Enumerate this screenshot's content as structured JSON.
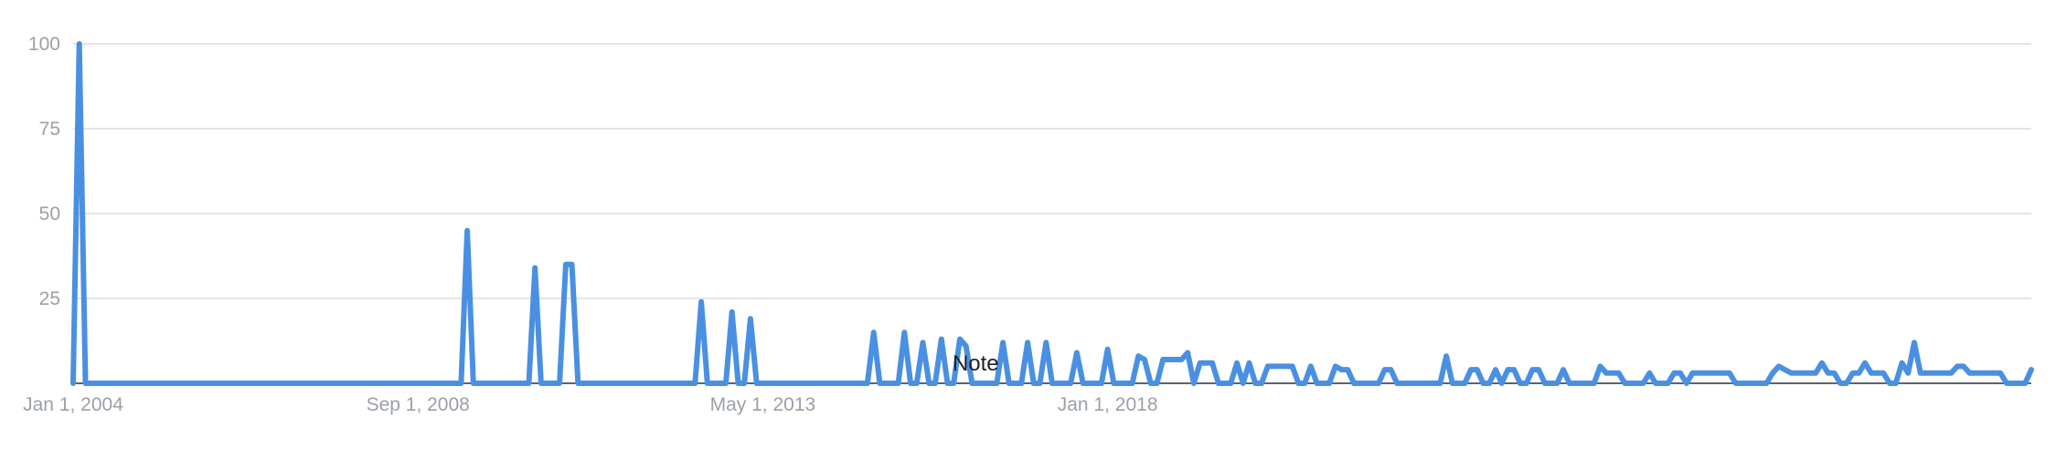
{
  "chart_data": {
    "type": "line",
    "title": "",
    "xlabel": "",
    "ylabel": "",
    "ylim": [
      0,
      100
    ],
    "yticks": [
      0,
      25,
      50,
      75,
      100
    ],
    "ytick_labels": [
      "25",
      "50",
      "75",
      "100"
    ],
    "xtick_labels": [
      {
        "date": "2004-01-01",
        "label": "Jan 1, 2004"
      },
      {
        "date": "2008-09-01",
        "label": "Sep 1, 2008"
      },
      {
        "date": "2013-05-01",
        "label": "May 1, 2013"
      },
      {
        "date": "2018-01-01",
        "label": "Jan 1, 2018"
      }
    ],
    "x_start": "2004-01-01",
    "grid": true,
    "series_color": "#4a90e2",
    "annotation": {
      "date": "2016-01-01",
      "label": "Note"
    },
    "series": [
      {
        "values": [
          0,
          100,
          0,
          0,
          0,
          0,
          0,
          0,
          0,
          0,
          0,
          0,
          0,
          0,
          0,
          0,
          0,
          0,
          0,
          0,
          0,
          0,
          0,
          0,
          0,
          0,
          0,
          0,
          0,
          0,
          0,
          0,
          0,
          0,
          0,
          0,
          0,
          0,
          0,
          0,
          0,
          0,
          0,
          0,
          0,
          0,
          0,
          0,
          0,
          0,
          0,
          0,
          0,
          0,
          0,
          0,
          0,
          0,
          0,
          0,
          0,
          0,
          0,
          0,
          45,
          0,
          0,
          0,
          0,
          0,
          0,
          0,
          0,
          0,
          0,
          34,
          0,
          0,
          0,
          0,
          35,
          35,
          0,
          0,
          0,
          0,
          0,
          0,
          0,
          0,
          0,
          0,
          0,
          0,
          0,
          0,
          0,
          0,
          0,
          0,
          0,
          0,
          24,
          0,
          0,
          0,
          0,
          21,
          0,
          0,
          19,
          0,
          0,
          0,
          0,
          0,
          0,
          0,
          0,
          0,
          0,
          0,
          0,
          0,
          0,
          0,
          0,
          0,
          0,
          0,
          15,
          0,
          0,
          0,
          0,
          15,
          0,
          0,
          12,
          0,
          0,
          13,
          0,
          0,
          13,
          11,
          0,
          0,
          0,
          0,
          0,
          12,
          0,
          0,
          0,
          12,
          0,
          0,
          12,
          0,
          0,
          0,
          0,
          9,
          0,
          0,
          0,
          0,
          10,
          0,
          0,
          0,
          0,
          8,
          7,
          0,
          0,
          7,
          7,
          7,
          7,
          9,
          0,
          6,
          6,
          6,
          0,
          0,
          0,
          6,
          0,
          6,
          0,
          0,
          5,
          5,
          5,
          5,
          5,
          0,
          0,
          5,
          0,
          0,
          0,
          5,
          4,
          4,
          0,
          0,
          0,
          0,
          0,
          4,
          4,
          0,
          0,
          0,
          0,
          0,
          0,
          0,
          0,
          8,
          0,
          0,
          0,
          4,
          4,
          0,
          0,
          4,
          0,
          4,
          4,
          0,
          0,
          4,
          4,
          0,
          0,
          0,
          4,
          0,
          0,
          0,
          0,
          0,
          5,
          3,
          3,
          3,
          0,
          0,
          0,
          0,
          3,
          0,
          0,
          0,
          3,
          3,
          0,
          3,
          3,
          3,
          3,
          3,
          3,
          3,
          0,
          0,
          0,
          0,
          0,
          0,
          3,
          5,
          4,
          3,
          3,
          3,
          3,
          3,
          6,
          3,
          3,
          0,
          0,
          3,
          3,
          6,
          3,
          3,
          3,
          0,
          0,
          6,
          3,
          12,
          3,
          3,
          3,
          3,
          3,
          3,
          5,
          5,
          3,
          3,
          3,
          3,
          3,
          3,
          0,
          0,
          0,
          0,
          4
        ]
      }
    ]
  }
}
